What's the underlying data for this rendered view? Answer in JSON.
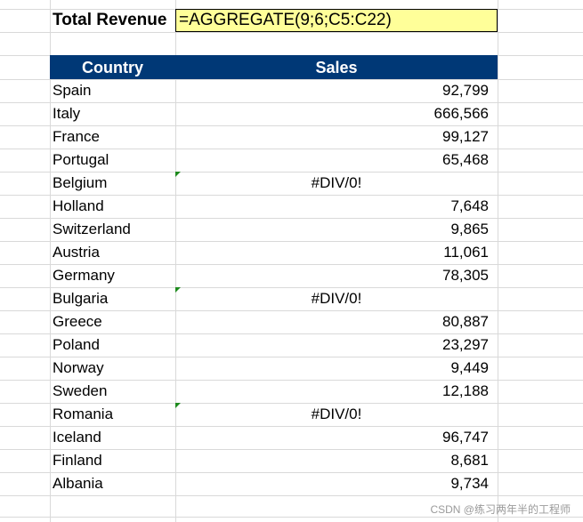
{
  "summary": {
    "label": "Total Revenue",
    "formula": "=AGGREGATE(9;6;C5:C22)"
  },
  "table": {
    "headers": {
      "country": "Country",
      "sales": "Sales"
    },
    "rows": [
      {
        "country": "Spain",
        "sales": "92,799",
        "error": false
      },
      {
        "country": "Italy",
        "sales": "666,566",
        "error": false
      },
      {
        "country": "France",
        "sales": "99,127",
        "error": false
      },
      {
        "country": "Portugal",
        "sales": "65,468",
        "error": false
      },
      {
        "country": "Belgium",
        "sales": "#DIV/0!",
        "error": true
      },
      {
        "country": "Holland",
        "sales": "7,648",
        "error": false
      },
      {
        "country": "Switzerland",
        "sales": "9,865",
        "error": false
      },
      {
        "country": "Austria",
        "sales": "11,061",
        "error": false
      },
      {
        "country": "Germany",
        "sales": "78,305",
        "error": false
      },
      {
        "country": "Bulgaria",
        "sales": "#DIV/0!",
        "error": true
      },
      {
        "country": "Greece",
        "sales": "80,887",
        "error": false
      },
      {
        "country": "Poland",
        "sales": "23,297",
        "error": false
      },
      {
        "country": "Norway",
        "sales": "9,449",
        "error": false
      },
      {
        "country": "Sweden",
        "sales": "12,188",
        "error": false
      },
      {
        "country": "Romania",
        "sales": "#DIV/0!",
        "error": true
      },
      {
        "country": "Iceland",
        "sales": "96,747",
        "error": false
      },
      {
        "country": "Finland",
        "sales": "8,681",
        "error": false
      },
      {
        "country": "Albania",
        "sales": "9,734",
        "error": false
      }
    ]
  },
  "colors": {
    "header_bg": "#003876",
    "formula_bg": "#ffff99",
    "error_indicator": "#1d8a1d"
  },
  "watermark": "CSDN @练习两年半的工程师"
}
